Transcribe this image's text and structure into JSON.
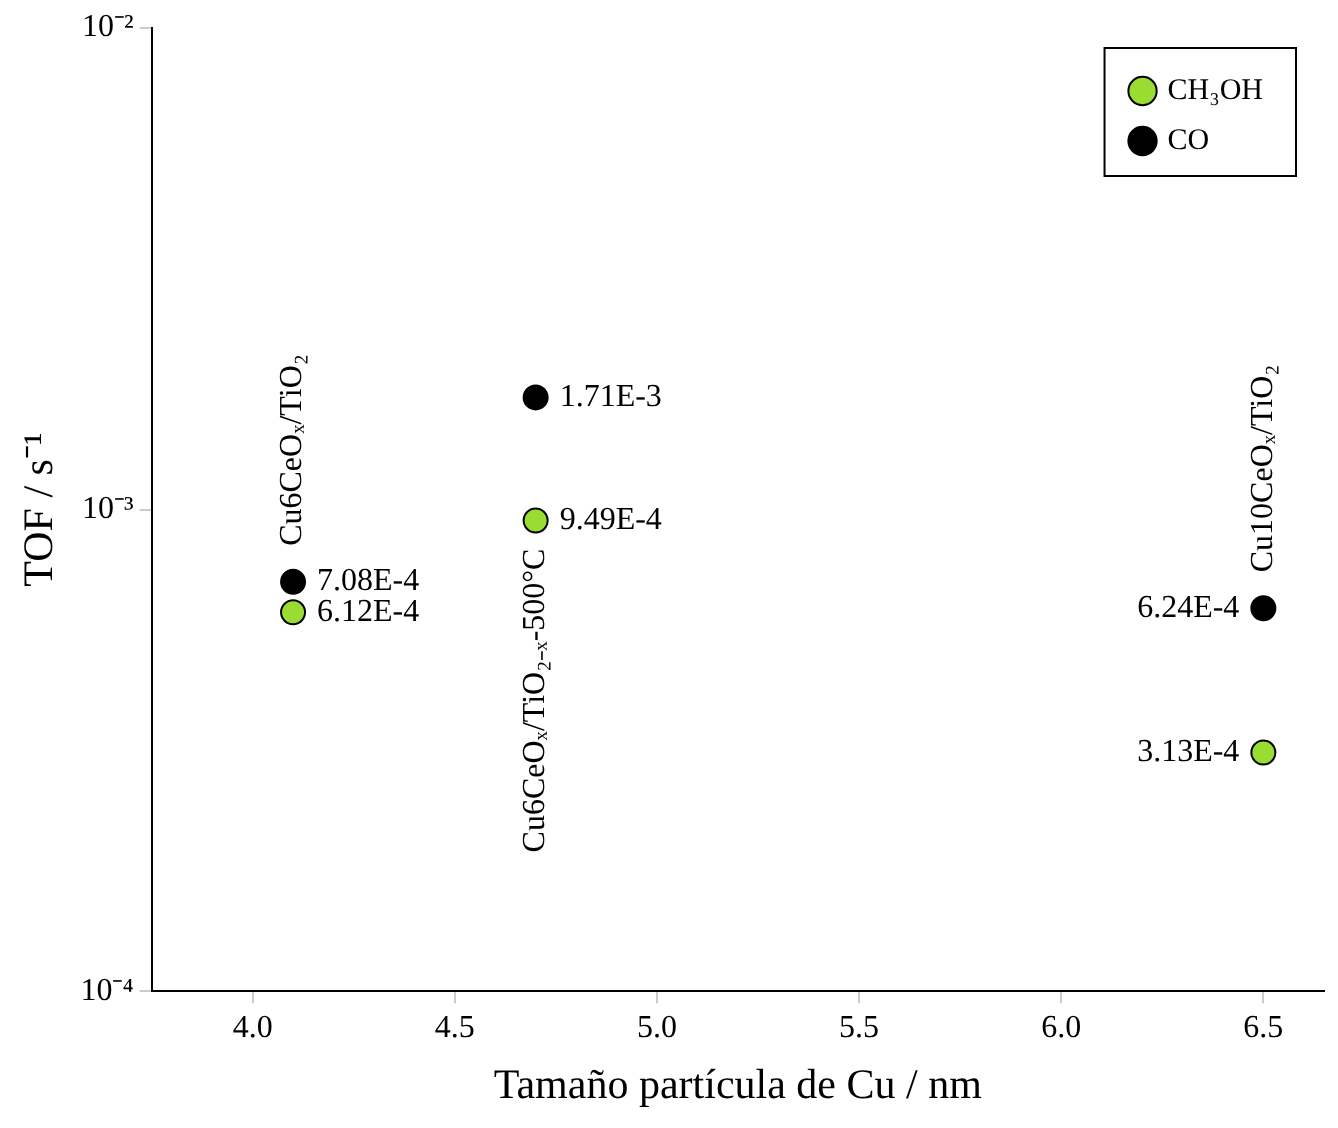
{
  "chart_data": {
    "type": "scatter",
    "xlabel": "Tamaño partícula de Cu / nm",
    "ylabel": "TOF / s⁻¹",
    "log": "y",
    "x": [
      4.1,
      4.7,
      6.5
    ],
    "series": [
      {
        "name": "CH₃OH",
        "color": "#99dd33",
        "values": [
          0.000612,
          0.000949,
          0.000313
        ],
        "value_labels": [
          "6.12E-4",
          "9.49E-4",
          "3.13E-4"
        ]
      },
      {
        "name": "CO",
        "color": "#000000",
        "values": [
          0.000708,
          0.00171,
          0.000624
        ],
        "value_labels": [
          "7.08E-4",
          "1.71E-3",
          "6.24E-4"
        ]
      }
    ],
    "xlim": [
      3.75,
      6.65
    ],
    "xticks": [
      {
        "value": 4,
        "label": "4.0"
      },
      {
        "value": 4.5,
        "label": "4.5"
      },
      {
        "value": 5,
        "label": "5.0"
      },
      {
        "value": 5.5,
        "label": "5.5"
      },
      {
        "value": 6,
        "label": "6.0"
      },
      {
        "value": 6.5,
        "label": "6.5"
      }
    ],
    "ylim": [
      0.0001,
      0.01
    ],
    "yticks": [
      {
        "value": 0.0001,
        "label": "10⁻⁴"
      },
      {
        "value": 0.001,
        "label": "10⁻³"
      },
      {
        "value": 0.01,
        "label": "10⁻²"
      }
    ],
    "annotations": [
      "Cu6CeOₓ/TiO₂",
      "Cu6CeOₓ/TiO₂₋ₓ-500°C",
      "Cu10CeOₓ/TiO₂"
    ],
    "legend": "top right",
    "marker": "circle",
    "grid": false
  }
}
